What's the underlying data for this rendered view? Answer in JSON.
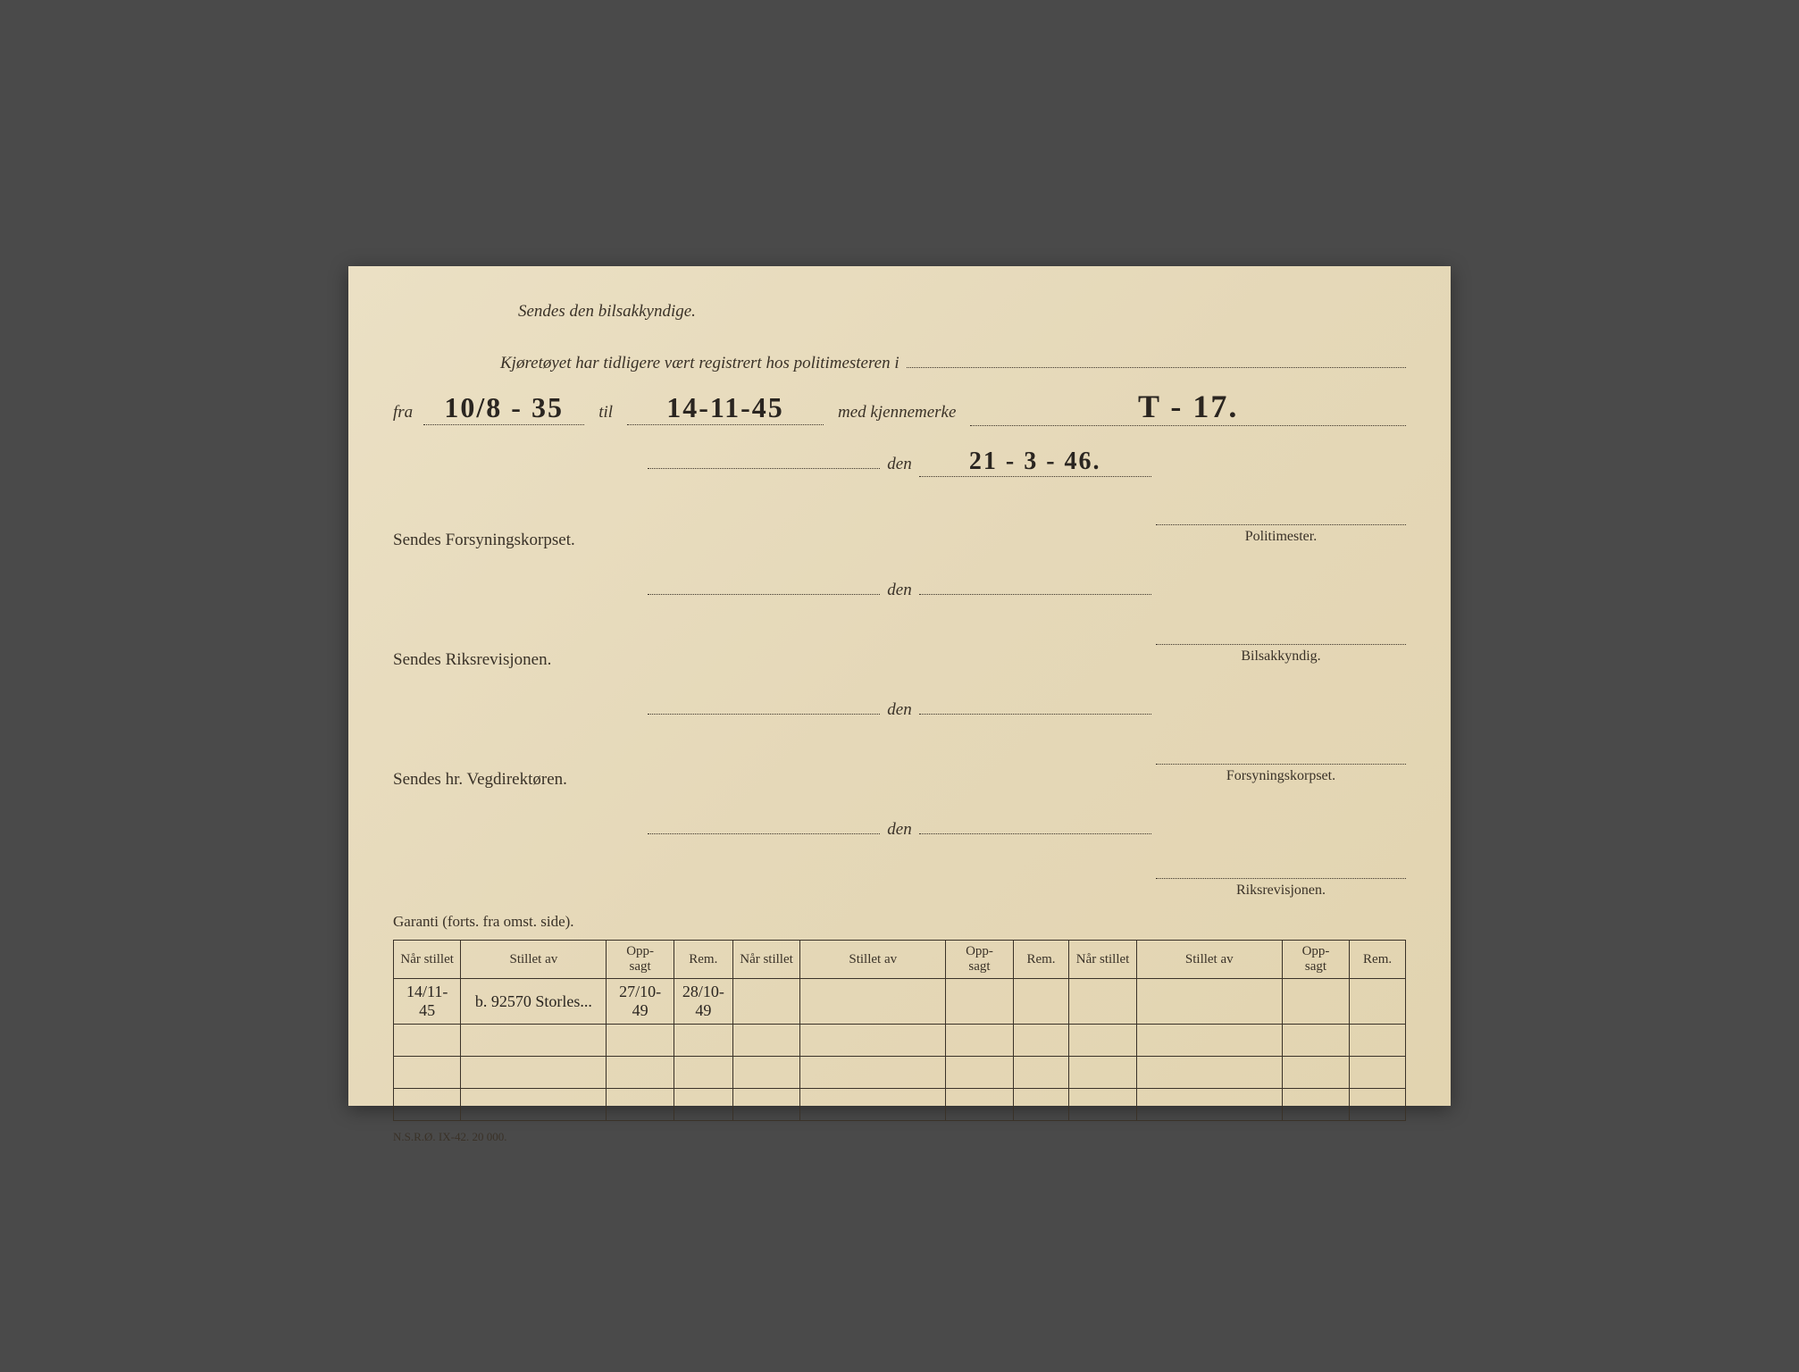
{
  "header": {
    "line1": "Sendes den bilsakkyndige.",
    "line2": "Kjøretøyet har tidligere vært registrert hos politimesteren i"
  },
  "registration": {
    "fra_label": "fra",
    "fra_value": "10/8 - 35",
    "til_label": "til",
    "til_value": "14-11-45",
    "med_label": "med kjennemerke",
    "kjennemerke": "T - 17.",
    "den_label": "den",
    "den_value": "21 - 3 - 46."
  },
  "sections": [
    {
      "title": "Sendes Forsyningskorpset.",
      "sig_label": "Politimester."
    },
    {
      "title": "Sendes Riksrevisjonen.",
      "sig_label": "Bilsakkyndig."
    },
    {
      "title": "Sendes hr. Vegdirektøren.",
      "sig_label": "Forsyningskorpset."
    }
  ],
  "final_sig_label": "Riksrevisjonen.",
  "garanti_label": "Garanti (forts. fra omst. side).",
  "table": {
    "columns": [
      "Når stillet",
      "Stillet av",
      "Opp-sagt",
      "Rem.",
      "Når stillet",
      "Stillet av",
      "Opp-sagt",
      "Rem.",
      "Når stillet",
      "Stillet av",
      "Opp-sagt",
      "Rem."
    ],
    "col_widths": [
      "6%",
      "13%",
      "6%",
      "5%",
      "6%",
      "13%",
      "6%",
      "5%",
      "6%",
      "13%",
      "6%",
      "5%"
    ],
    "rows": [
      [
        "14/11-45",
        "b. 92570 Storles...",
        "27/10-49",
        "28/10-49",
        "",
        "",
        "",
        "",
        "",
        "",
        "",
        ""
      ],
      [
        "",
        "",
        "",
        "",
        "",
        "",
        "",
        "",
        "",
        "",
        "",
        ""
      ],
      [
        "",
        "",
        "",
        "",
        "",
        "",
        "",
        "",
        "",
        "",
        "",
        ""
      ],
      [
        "",
        "",
        "",
        "",
        "",
        "",
        "",
        "",
        "",
        "",
        "",
        ""
      ]
    ]
  },
  "footer": "N.S.R.Ø. IX-42. 20 000.",
  "colors": {
    "paper": "#e8dcc0",
    "ink": "#3a3228",
    "handwriting": "#2a2520"
  }
}
